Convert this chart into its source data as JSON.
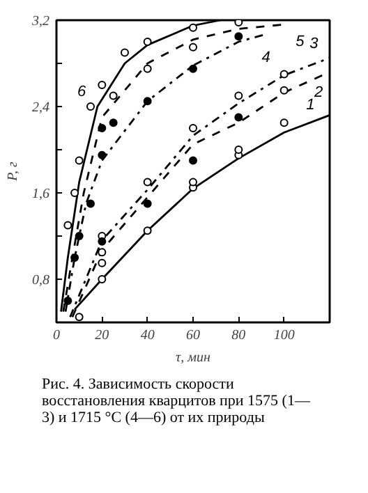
{
  "chart_data": {
    "type": "line",
    "xlabel": "τ, мин",
    "ylabel": "P, г",
    "xlim": [
      0,
      120
    ],
    "ylim": [
      0.4,
      3.2
    ],
    "xticks": [
      0,
      20,
      40,
      60,
      80,
      100,
      {
        "value": 120,
        "label": null
      }
    ],
    "yticks": [
      {
        "value": 0.8,
        "label": "0,8"
      },
      {
        "value": 1.2,
        "label": null
      },
      {
        "value": 1.6,
        "label": "1,6"
      },
      {
        "value": 2.0,
        "label": null
      },
      {
        "value": 2.4,
        "label": "2,4"
      },
      {
        "value": 2.8,
        "label": null
      },
      {
        "value": 3.2,
        "label": "3,2"
      }
    ],
    "grid": false,
    "marker": "none",
    "series": [
      {
        "color": "#000000",
        "line_style": "solid",
        "x": [
          8,
          20,
          40,
          60,
          80,
          100,
          120
        ],
        "values": [
          0.52,
          0.8,
          1.25,
          1.64,
          1.92,
          2.16,
          2.32
        ]
      },
      {
        "color": "#000000",
        "line_style": "dashed",
        "x": [
          7,
          20,
          40,
          60,
          80,
          100,
          120
        ],
        "values": [
          0.45,
          1.07,
          1.56,
          2.05,
          2.25,
          2.53,
          2.72
        ]
      },
      {
        "color": "#000000",
        "line_style": "dashdot",
        "x": [
          6,
          20,
          40,
          60,
          80,
          100,
          120
        ],
        "values": [
          0.45,
          1.16,
          1.63,
          2.13,
          2.43,
          2.69,
          2.85
        ]
      },
      {
        "color": "#000000",
        "line_style": "dashdot",
        "x": [
          4,
          8,
          13,
          20,
          40,
          60,
          80,
          92
        ],
        "values": [
          0.5,
          1.0,
          1.5,
          1.9,
          2.45,
          2.78,
          3.0,
          3.07
        ]
      },
      {
        "color": "#000000",
        "line_style": "dashed",
        "x": [
          3,
          7,
          12,
          20,
          40,
          60,
          80,
          100
        ],
        "values": [
          0.5,
          1.0,
          1.6,
          2.3,
          2.8,
          3.02,
          3.12,
          3.16
        ]
      },
      {
        "color": "#000000",
        "line_style": "solid",
        "x": [
          2,
          5,
          10,
          18,
          30,
          40,
          60,
          72
        ],
        "values": [
          0.5,
          1.0,
          1.7,
          2.4,
          2.8,
          2.97,
          3.15,
          3.2
        ]
      },
      {
        "type": "scatter",
        "marker": "circle",
        "color": "#ffffff",
        "x": [
          10,
          20,
          20,
          40,
          60,
          60,
          80,
          80,
          100,
          40,
          60,
          80,
          100,
          100,
          20,
          20,
          5,
          8,
          10,
          15,
          20,
          30,
          40,
          60,
          25,
          40,
          60,
          80
        ],
        "values": [
          0.45,
          0.8,
          0.95,
          1.25,
          1.65,
          1.7,
          1.95,
          2.0,
          2.25,
          1.7,
          2.2,
          2.5,
          2.7,
          2.55,
          1.2,
          1.05,
          1.3,
          1.6,
          1.9,
          2.4,
          2.6,
          2.9,
          3.0,
          3.13,
          2.5,
          2.75,
          2.95,
          3.18
        ]
      },
      {
        "type": "scatter",
        "marker": "circle",
        "color": "#000000",
        "x": [
          5,
          8,
          10,
          15,
          20,
          40,
          60,
          80,
          20,
          25,
          40,
          60,
          80,
          20
        ],
        "values": [
          0.6,
          1.0,
          1.2,
          1.5,
          1.15,
          1.5,
          1.9,
          2.3,
          2.2,
          2.25,
          2.45,
          2.75,
          3.05,
          1.95
        ]
      }
    ],
    "annotations": [
      {
        "text": "1",
        "x": 120,
        "y": 2.32
      },
      {
        "text": "2",
        "x": 120,
        "y": 2.72
      },
      {
        "text": "3",
        "x": 120,
        "y": 2.85
      },
      {
        "text": "4",
        "x": 92,
        "y": 3.07
      },
      {
        "text": "5",
        "x": 100,
        "y": 3.16
      },
      {
        "text": "6",
        "x": 18,
        "y": 2.4
      },
      "Рис. 4. Зависимость скорости восстановления кварцитов при 1575 (1—3) и 1715 °C (4—6) от их природы"
    ]
  }
}
